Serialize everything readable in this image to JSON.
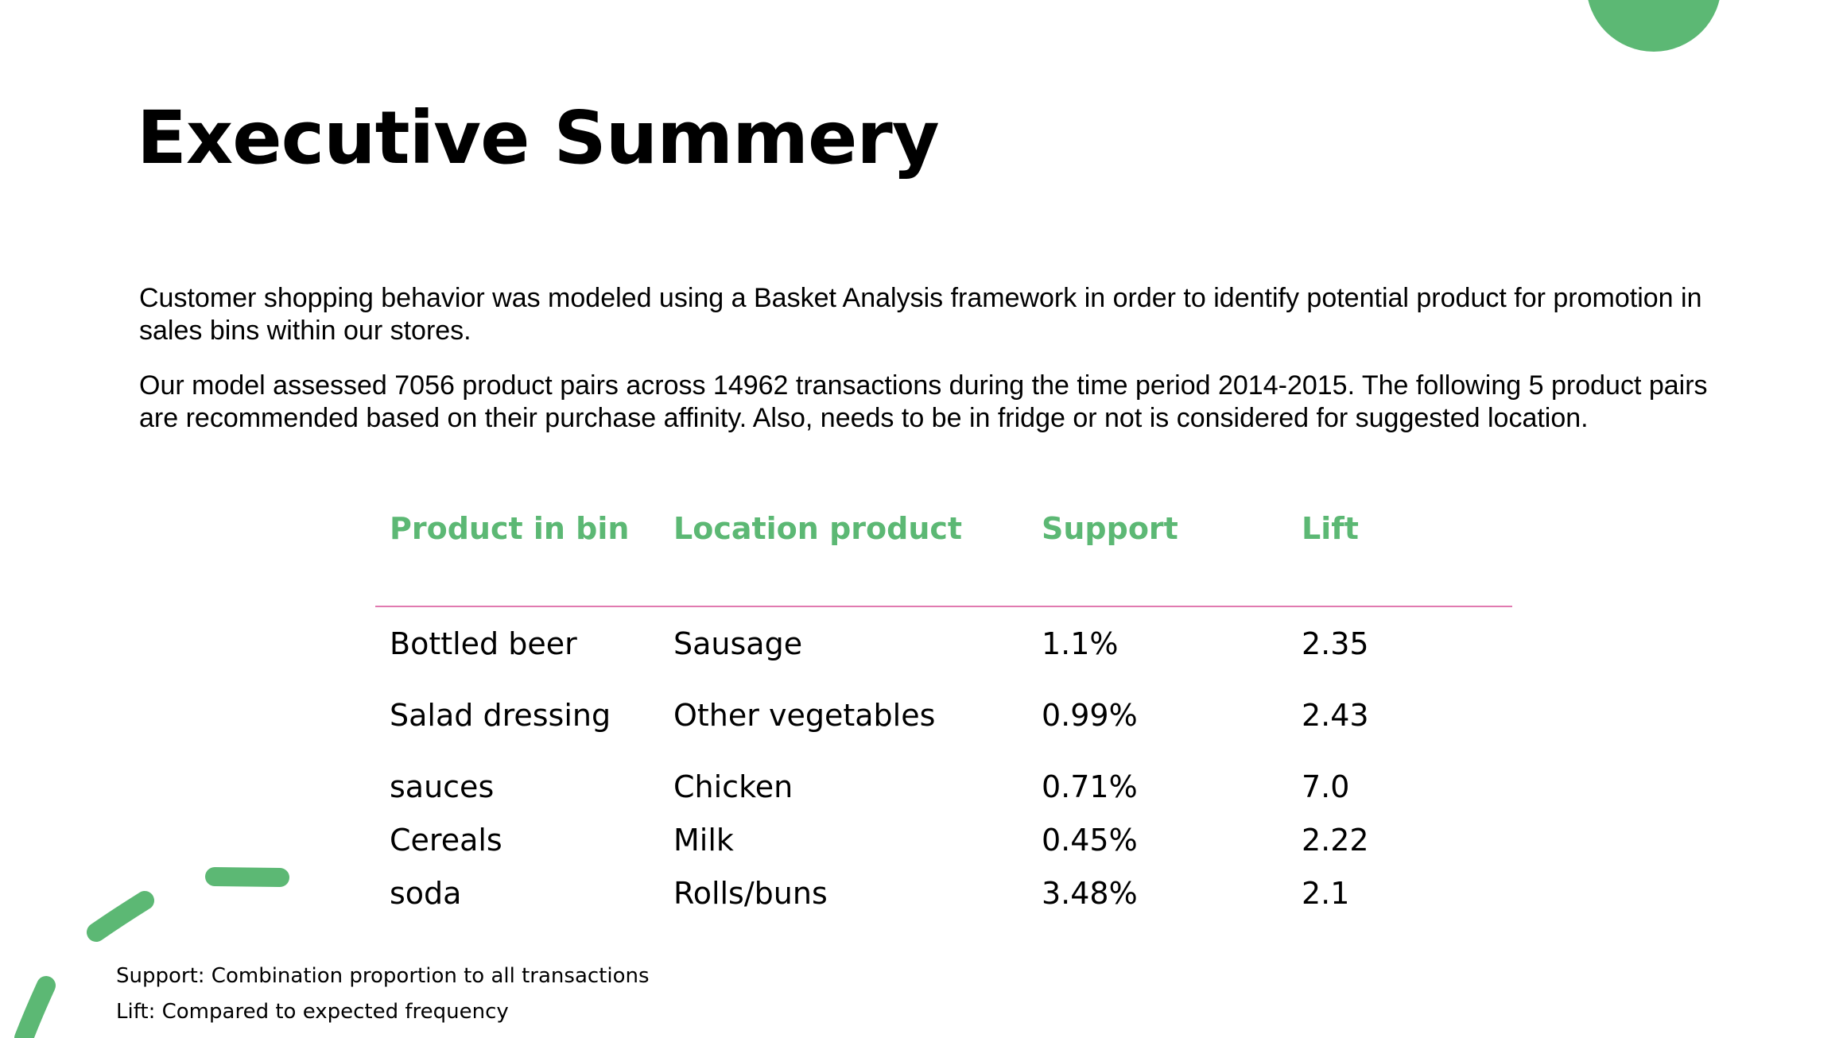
{
  "slide": {
    "title": "Executive Summery",
    "paragraphs": [
      "Customer shopping behavior was modeled using a Basket Analysis framework in order to identify potential product for promotion in sales bins within our stores.",
      "Our model assessed 7056 product pairs across 14962 transactions during the time period 2014-2015. The following 5 product pairs are recommended based on their purchase affinity. Also, needs to be in fridge or not is considered for suggested location."
    ]
  },
  "table": {
    "headers": [
      "Product in bin",
      "Location product",
      "Support",
      "Lift"
    ],
    "rows": [
      [
        "Bottled beer",
        "Sausage",
        "1.1%",
        "2.35"
      ],
      [
        "Salad dressing",
        "Other vegetables",
        "0.99%",
        "2.43"
      ],
      [
        "sauces",
        "Chicken",
        "0.71%",
        "7.0"
      ],
      [
        "Cereals",
        "Milk",
        "0.45%",
        "2.22"
      ],
      [
        "soda",
        "Rolls/buns",
        "3.48%",
        "2.1"
      ]
    ]
  },
  "footnotes": [
    "Support: Combination proportion to all transactions",
    "Lift: Compared to expected frequency"
  ],
  "colors": {
    "accent_green": "#5cb874",
    "rule_pink": "#e17ab0",
    "text": "#000000",
    "background": "#ffffff"
  }
}
